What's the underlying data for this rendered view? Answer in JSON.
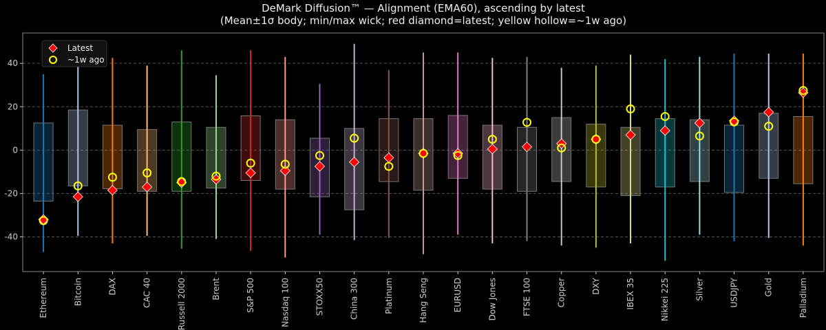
{
  "chart_data": {
    "type": "boxplot-range",
    "title": "DeMark Diffusion™ — Alignment (EMA60), ascending by latest",
    "subtitle": "(Mean±1σ body; min/max wick; red diamond=latest; yellow hollow=~1w ago)",
    "xlabel": "",
    "ylabel": "",
    "ylim": [
      -56,
      54
    ],
    "yticks": [
      40,
      20,
      0,
      -20,
      -40
    ],
    "grid": "horizontal dashed",
    "legend": {
      "placement": "top-left",
      "entries": [
        {
          "label": "Latest",
          "marker": "diamond",
          "color": "#ff0000"
        },
        {
          "label": "~1w ago",
          "marker": "hollow-circle",
          "color": "#ffff00"
        }
      ]
    },
    "categories": [
      "Ethereum",
      "Bitcoin",
      "DAX",
      "CAC 40",
      "Russell 2000",
      "Brent",
      "S&P 500",
      "Nasdaq 100",
      "STOXX50",
      "China 300",
      "Platinum",
      "Hang Seng",
      "EURUSD",
      "Dow Jones",
      "FTSE 100",
      "Copper",
      "DXY",
      "IBEX 35",
      "Nikkei 225",
      "Silver",
      "USDJPY",
      "Gold",
      "Palladium"
    ],
    "colors": [
      "#1f77b4",
      "#aec7e8",
      "#ff7f0e",
      "#ffbb78",
      "#2ca02c",
      "#98df8a",
      "#d62728",
      "#ff9896",
      "#9467bd",
      "#c5b0d5",
      "#8c564b",
      "#c49c94",
      "#e377c2",
      "#f7b6d2",
      "#7f7f7f",
      "#c7c7c7",
      "#bcbd22",
      "#dbdb8d",
      "#17becf",
      "#9edae5",
      "#1f77b4",
      "#aec7e8",
      "#ff7f0e"
    ],
    "body_high": [
      12.5,
      18.5,
      11.5,
      9.5,
      13,
      10.5,
      15.8,
      14,
      5.5,
      10,
      14.5,
      14.5,
      16,
      11.5,
      10.5,
      15,
      12,
      10.5,
      14.5,
      14,
      11.5,
      17,
      15.5
    ],
    "body_low": [
      -23.5,
      -16.5,
      -17.8,
      -19,
      -19,
      -17.5,
      -14,
      -18,
      -21.5,
      -27.5,
      -14.5,
      -18.5,
      -13,
      -18,
      -19,
      -14.5,
      -17,
      -21,
      -17,
      -14.5,
      -19.5,
      -13,
      -15.5
    ],
    "max": [
      35,
      48,
      42.5,
      39,
      46,
      34.5,
      46,
      43,
      30.5,
      49,
      37,
      45,
      45,
      42.5,
      43,
      38,
      39,
      44,
      42,
      43,
      44.5,
      44.5,
      44.5
    ],
    "min": [
      -47,
      -39.5,
      -43,
      -39.5,
      -45.5,
      -41,
      -46.5,
      -49.5,
      -39,
      -41.5,
      -40.5,
      -48,
      -39,
      -43,
      -42,
      -44,
      -45,
      -43,
      -51,
      -39,
      -42,
      -40.5,
      -44
    ],
    "latest": [
      -32,
      -21.5,
      -18.5,
      -17,
      -15,
      -13.5,
      -10.5,
      -9.5,
      -7.5,
      -5.5,
      -3.5,
      -1.5,
      -1.5,
      0.5,
      1.5,
      3,
      5,
      7,
      9,
      12.5,
      13.5,
      17.5,
      26.5
    ],
    "week_ago": [
      -32.5,
      -16.5,
      -12.5,
      -10.5,
      -14.5,
      -12,
      -6,
      -6.5,
      -2.5,
      5.5,
      -7.5,
      -1.5,
      -2.5,
      5,
      12.8,
      1,
      5,
      19,
      15.5,
      6.5,
      13,
      11,
      27.5
    ]
  }
}
